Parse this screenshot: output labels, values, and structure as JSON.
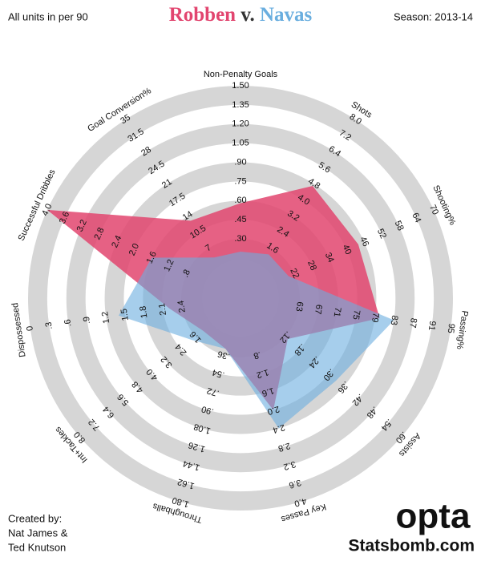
{
  "chart_data": {
    "type": "radar",
    "title_connector": "v.",
    "note": "All units in per 90",
    "subtitle": "Season: 2013-14",
    "credits": [
      "Created by:",
      "Nat James &",
      "Ted Knutson"
    ],
    "logo": "opta",
    "source": "Statsbomb.com",
    "axes": [
      {
        "name": "Non-Penalty Goals",
        "lim": [
          0.15,
          1.5
        ],
        "ticks": [
          {
            "value": 0.3,
            "label": ".30"
          },
          {
            "value": 0.45,
            "label": ".45"
          },
          {
            "value": 0.6,
            "label": ".60"
          },
          {
            "value": 0.75,
            "label": ".75"
          },
          {
            "value": 0.9,
            "label": ".90"
          },
          1.05,
          {
            "value": 1.2,
            "label": "1.20"
          },
          1.35,
          {
            "value": 1.5,
            "label": "1.50"
          }
        ]
      },
      {
        "name": "Shots",
        "lim": [
          0.8,
          8
        ],
        "ticks": [
          1.6,
          2.4,
          3.2,
          {
            "value": 4,
            "label": "4.0"
          },
          4.8,
          5.6,
          6.4,
          7.2,
          {
            "value": 8,
            "label": "8.0"
          }
        ]
      },
      {
        "name": "Shooting%",
        "lim": [
          16,
          70
        ],
        "ticks": [
          22,
          28,
          34,
          40,
          46,
          52,
          58,
          64,
          70
        ]
      },
      {
        "name": "Passing%",
        "lim": [
          59,
          95
        ],
        "ticks": [
          63,
          67,
          71,
          75,
          79,
          83,
          87,
          91,
          95
        ]
      },
      {
        "name": "Assists",
        "lim": [
          0.06,
          0.6
        ],
        "ticks": [
          {
            "value": 0.12,
            "label": ".12"
          },
          {
            "value": 0.18,
            "label": ".18"
          },
          {
            "value": 0.24,
            "label": ".24"
          },
          {
            "value": 0.3,
            "label": ".30"
          },
          {
            "value": 0.36,
            "label": ".36"
          },
          {
            "value": 0.42,
            "label": ".42"
          },
          {
            "value": 0.48,
            "label": ".48"
          },
          {
            "value": 0.54,
            "label": ".54"
          },
          {
            "value": 0.6,
            "label": ".60"
          }
        ]
      },
      {
        "name": "Key Passes",
        "lim": [
          0.4,
          4
        ],
        "ticks": [
          {
            "value": 0.8,
            "label": ".8"
          },
          1.2,
          1.6,
          {
            "value": 2,
            "label": "2.0"
          },
          2.4,
          2.8,
          3.2,
          3.6,
          {
            "value": 4,
            "label": "4.0"
          }
        ]
      },
      {
        "name": "Throughballs",
        "lim": [
          0.18,
          1.8
        ],
        "ticks": [
          {
            "value": 0.36,
            "label": ".36"
          },
          {
            "value": 0.54,
            "label": ".54"
          },
          {
            "value": 0.72,
            "label": ".72"
          },
          {
            "value": 0.9,
            "label": ".90"
          },
          1.08,
          1.26,
          1.44,
          1.62,
          {
            "value": 1.8,
            "label": "1.80"
          }
        ]
      },
      {
        "name": "Int+Tackles",
        "lim": [
          0.8,
          8
        ],
        "ticks": [
          1.6,
          2.4,
          3.2,
          {
            "value": 4,
            "label": "4.0"
          },
          4.8,
          5.6,
          6.4,
          7.2,
          {
            "value": 8,
            "label": "8.0"
          }
        ]
      },
      {
        "name": "Dispossessed",
        "lim": [
          2.7,
          0
        ],
        "ticks": [
          2.4,
          2.1,
          1.8,
          1.5,
          1.2,
          {
            "value": 0.9,
            "label": ".9"
          },
          {
            "value": 0.6,
            "label": ".6"
          },
          {
            "value": 0.3,
            "label": ".3"
          },
          0
        ]
      },
      {
        "name": "Successful Dribbles",
        "lim": [
          0.4,
          4
        ],
        "ticks": [
          {
            "value": 0.8,
            "label": ".8"
          },
          1.2,
          1.6,
          {
            "value": 2,
            "label": "2.0"
          },
          2.4,
          2.8,
          3.2,
          3.6,
          {
            "value": 4,
            "label": "4.0"
          }
        ]
      },
      {
        "name": "Goal Conversion%",
        "lim": [
          3.5,
          35
        ],
        "ticks": [
          7,
          10.5,
          14,
          17.5,
          21,
          24.5,
          28,
          31.5,
          35
        ]
      }
    ],
    "series": [
      {
        "name": "Robben",
        "color": "#e2456f",
        "values": [
          0.58,
          4.7,
          44,
          80,
          0.13,
          2.0,
          0.3,
          1.2,
          2.2,
          4.0,
          13
        ]
      },
      {
        "name": "Navas",
        "color": "#6aaedf",
        "values": [
          0.2,
          1.3,
          20,
          83,
          0.33,
          2.4,
          0.3,
          1.8,
          1.4,
          1.6,
          5
        ]
      }
    ]
  }
}
